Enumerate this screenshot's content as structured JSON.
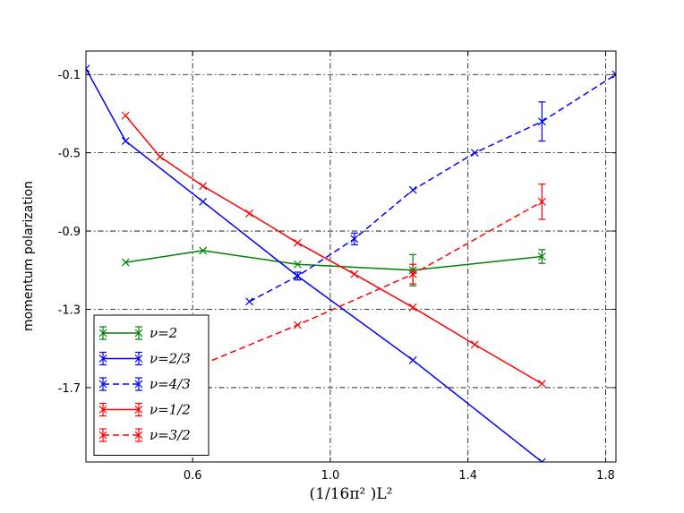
{
  "chart_data": {
    "type": "line",
    "title": "",
    "xlabel": "(1/16π² )L²",
    "ylabel": "momentum polarization",
    "xlim": [
      0.29,
      1.83
    ],
    "ylim": [
      -2.08,
      0.02
    ],
    "xticks": [
      0.6,
      1.0,
      1.4,
      1.8
    ],
    "xtick_labels": [
      "0.6",
      "1.0",
      "1.4",
      "1.8"
    ],
    "yticks": [
      -0.1,
      -0.5,
      -0.9,
      -1.3,
      -1.7
    ],
    "ytick_labels": [
      "-0.1",
      "-0.5",
      "-0.9",
      "-1.3",
      "-1.7"
    ],
    "grid": true,
    "legend_position": "lower-left",
    "series": [
      {
        "name": "ν=2",
        "color": "#008000",
        "dash": "solid",
        "x": [
          0.405,
          0.63,
          0.905,
          1.24,
          1.615
        ],
        "y": [
          -1.06,
          -1.0,
          -1.07,
          -1.1,
          -1.03
        ],
        "err": [
          0.0,
          0.0,
          0.0,
          0.08,
          0.035
        ]
      },
      {
        "name": "ν=2/3",
        "color": "#0000ff",
        "dash": "solid",
        "x": [
          0.29,
          0.405,
          0.63,
          0.905,
          1.24,
          1.615
        ],
        "y": [
          -0.07,
          -0.44,
          -0.75,
          -1.13,
          -1.56,
          -2.08
        ],
        "err": [
          0.0,
          0.0,
          0.0,
          0.02,
          0.0,
          0.0
        ]
      },
      {
        "name": "ν=4/3",
        "color": "#0000ff",
        "dash": "dashed",
        "x": [
          0.765,
          0.905,
          1.07,
          1.24,
          1.42,
          1.615,
          1.83
        ],
        "y": [
          -1.26,
          -1.13,
          -0.94,
          -0.69,
          -0.5,
          -0.34,
          -0.1
        ],
        "err": [
          0.0,
          0.0,
          0.03,
          0.0,
          0.0,
          0.1,
          0.0
        ]
      },
      {
        "name": "ν=1/2",
        "color": "#ff0000",
        "dash": "solid",
        "x": [
          0.405,
          0.505,
          0.63,
          0.765,
          0.905,
          1.07,
          1.24,
          1.42,
          1.615
        ],
        "y": [
          -0.31,
          -0.52,
          -0.67,
          -0.81,
          -0.96,
          -1.12,
          -1.29,
          -1.48,
          -1.68
        ],
        "err": [
          0.0,
          0.0,
          0.0,
          0.0,
          0.0,
          0.0,
          0.0,
          0.0,
          0.0
        ]
      },
      {
        "name": "ν=3/2",
        "color": "#ff0000",
        "dash": "dashed",
        "x": [
          0.63,
          0.905,
          1.24,
          1.615
        ],
        "y": [
          -1.58,
          -1.38,
          -1.12,
          -0.75
        ],
        "err": [
          0.0,
          0.0,
          0.05,
          0.09
        ]
      }
    ]
  }
}
